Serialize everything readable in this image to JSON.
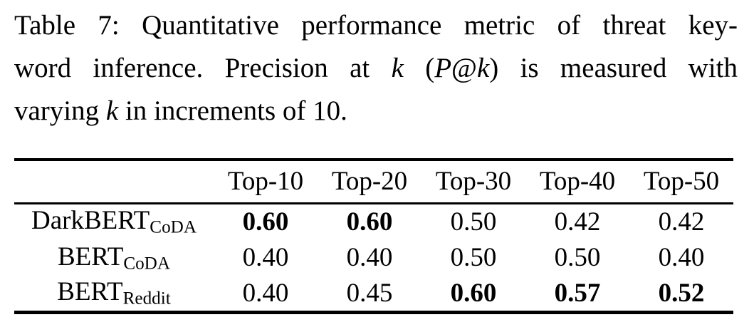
{
  "page": {
    "background_color": "#ffffff",
    "text_color": "#000000",
    "rule_color": "#000000"
  },
  "caption": {
    "line1": "Table 7: Quantitative performance metric of threat key-",
    "line2_pre": "word inference. Precision at ",
    "line2_k1": "k",
    "line2_open": " (",
    "line2_P": "P",
    "line2_at": "@",
    "line2_k2": "k",
    "line2_post": ") is measured with",
    "line3_pre": "varying ",
    "line3_k": "k",
    "line3_post": " in increments of 10."
  },
  "table": {
    "col_headers": [
      "Top-10",
      "Top-20",
      "Top-30",
      "Top-40",
      "Top-50"
    ],
    "rows": [
      {
        "label_base": "DarkBERT",
        "label_sub": "CoDA",
        "cells": [
          {
            "value": "0.60",
            "bold": true
          },
          {
            "value": "0.60",
            "bold": true
          },
          {
            "value": "0.50",
            "bold": false
          },
          {
            "value": "0.42",
            "bold": false
          },
          {
            "value": "0.42",
            "bold": false
          }
        ]
      },
      {
        "label_base": "BERT",
        "label_sub": "CoDA",
        "cells": [
          {
            "value": "0.40",
            "bold": false
          },
          {
            "value": "0.40",
            "bold": false
          },
          {
            "value": "0.50",
            "bold": false
          },
          {
            "value": "0.50",
            "bold": false
          },
          {
            "value": "0.40",
            "bold": false
          }
        ]
      },
      {
        "label_base": "BERT",
        "label_sub": "Reddit",
        "cells": [
          {
            "value": "0.40",
            "bold": false
          },
          {
            "value": "0.45",
            "bold": false
          },
          {
            "value": "0.60",
            "bold": true
          },
          {
            "value": "0.57",
            "bold": true
          },
          {
            "value": "0.52",
            "bold": true
          }
        ]
      }
    ]
  }
}
